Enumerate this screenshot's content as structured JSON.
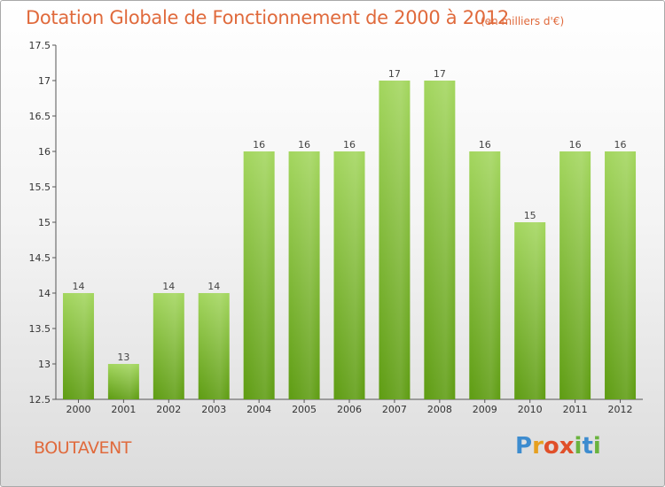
{
  "title": "Dotation Globale de Fonctionnement de 2000 à 2012",
  "unit": "(en milliers d'€)",
  "commune": "BOUTAVENT",
  "logo": {
    "text": "Proxiti"
  },
  "colors": {
    "bar_light": "#9fd25a",
    "bar_dark": "#5e9c12",
    "text_accent": "#e06a3c"
  },
  "chart_data": {
    "type": "bar",
    "categories": [
      "2000",
      "2001",
      "2002",
      "2003",
      "2004",
      "2005",
      "2006",
      "2007",
      "2008",
      "2009",
      "2010",
      "2011",
      "2012"
    ],
    "values": [
      14,
      13,
      14,
      14,
      16,
      16,
      16,
      17,
      17,
      16,
      15,
      16,
      16
    ],
    "data_labels": [
      "14",
      "13",
      "14",
      "14",
      "16",
      "16",
      "16",
      "17",
      "17",
      "16",
      "15",
      "16",
      "16"
    ],
    "y_ticks": [
      "12.5",
      "13",
      "13.5",
      "14",
      "14.5",
      "15",
      "15.5",
      "16",
      "16.5",
      "17",
      "17.5"
    ],
    "ylim": [
      12.5,
      17.5
    ],
    "grid": false,
    "legend": "none",
    "xlabel": "",
    "ylabel": ""
  }
}
